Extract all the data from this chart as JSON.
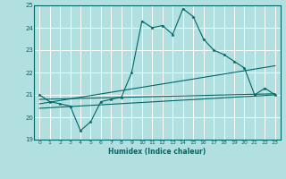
{
  "xlabel": "Humidex (Indice chaleur)",
  "bg_color": "#b2e0e0",
  "grid_color": "#ffffff",
  "line_color": "#006666",
  "ylim": [
    19,
    25
  ],
  "xlim": [
    -0.5,
    23.5
  ],
  "yticks": [
    19,
    20,
    21,
    22,
    23,
    24,
    25
  ],
  "xticks": [
    0,
    1,
    2,
    3,
    4,
    5,
    6,
    7,
    8,
    9,
    10,
    11,
    12,
    13,
    14,
    15,
    16,
    17,
    18,
    19,
    20,
    21,
    22,
    23
  ],
  "line1_x": [
    0,
    1,
    2,
    3,
    4,
    5,
    6,
    7,
    8,
    9,
    10,
    11,
    12,
    13,
    14,
    15,
    16,
    17,
    18,
    19,
    20,
    21,
    22,
    23
  ],
  "line1_y": [
    21.0,
    20.7,
    20.6,
    20.5,
    19.4,
    19.8,
    20.7,
    20.8,
    20.9,
    22.0,
    24.3,
    24.0,
    24.1,
    23.7,
    24.85,
    24.5,
    23.5,
    23.0,
    22.8,
    22.5,
    22.2,
    21.0,
    21.3,
    21.0
  ],
  "line2_x": [
    0,
    23
  ],
  "line2_y": [
    20.8,
    21.05
  ],
  "line3_x": [
    0,
    23
  ],
  "line3_y": [
    20.6,
    22.3
  ],
  "line4_x": [
    0,
    23
  ],
  "line4_y": [
    20.4,
    21.0
  ]
}
